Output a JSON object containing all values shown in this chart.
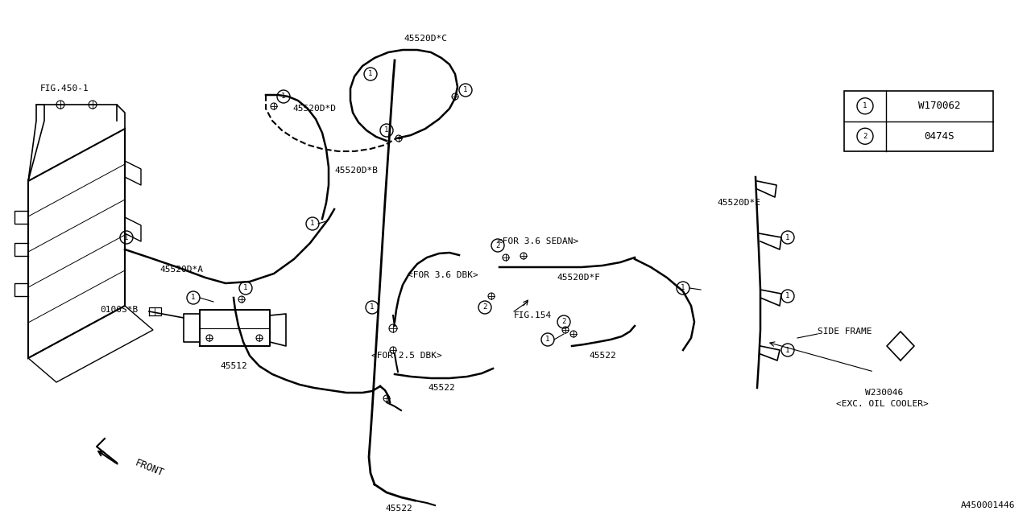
{
  "bg_color": "#ffffff",
  "line_color": "#000000",
  "fig_id": "A450001446",
  "labels": {
    "front_arrow": "FRONT",
    "part_45522_top": "45522",
    "part_45522_mid": "45522",
    "part_45522_right": "45522",
    "part_45512": "45512",
    "part_0100SB": "0100S*B",
    "part_45520DA": "45520D*A",
    "part_45520DB": "45520D*B",
    "part_45520DC": "45520D*C",
    "part_45520DD": "45520D*D",
    "part_45520DE": "45520D*E",
    "part_45520DF": "45520D*F",
    "for_25_obk": "<FOR 2.5 DBK>",
    "for_36_obk": "<FOR 3.6 DBK>",
    "for_36_sedan": "<FOR 3.6 SEDAN>",
    "fig154": "FIG.154",
    "fig450_1": "FIG.450-1",
    "side_frame": "SIDE FRAME",
    "w230046": "W230046",
    "exc_oil_cooler": "<EXC. OIL COOLER>",
    "legend_1_code": "W170062",
    "legend_2_code": "0474S"
  }
}
